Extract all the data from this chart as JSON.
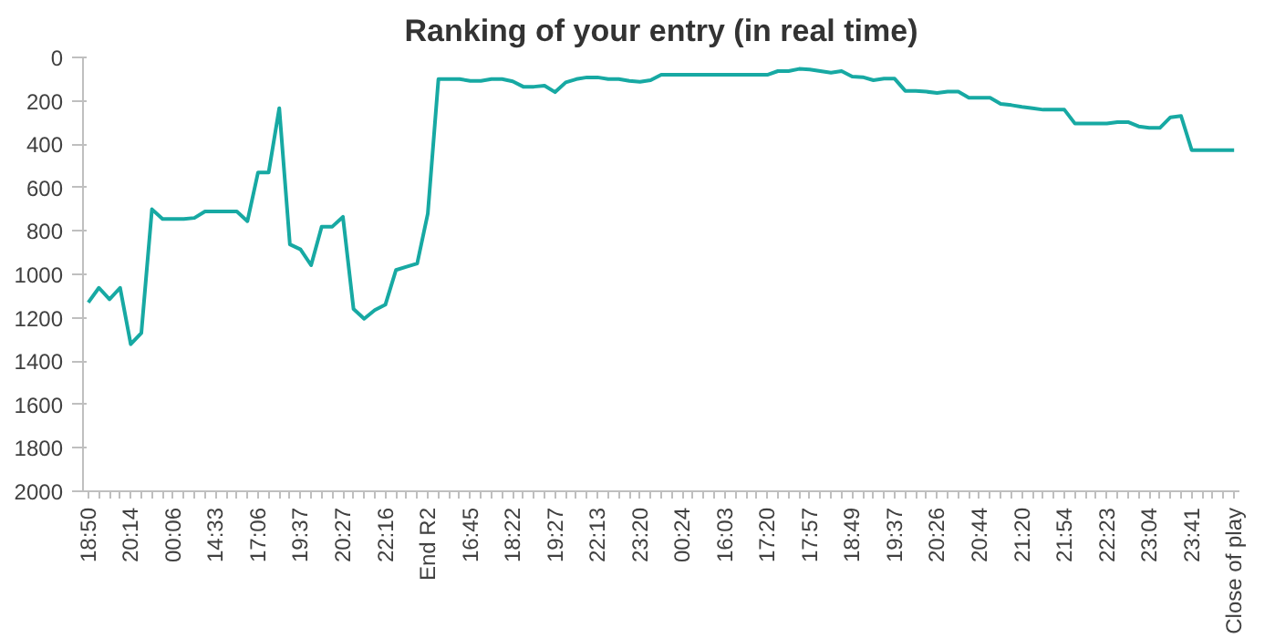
{
  "chart_data": {
    "type": "line",
    "title": "Ranking of your entry (in real time)",
    "categories": [
      "18:50",
      null,
      null,
      null,
      "20:14",
      null,
      null,
      null,
      "00:06",
      null,
      null,
      null,
      "14:33",
      null,
      null,
      null,
      "17:06",
      null,
      null,
      null,
      "19:37",
      null,
      null,
      null,
      "20:27",
      null,
      null,
      null,
      "22:16",
      null,
      null,
      null,
      "End R2",
      null,
      null,
      null,
      "16:45",
      null,
      null,
      null,
      "18:22",
      null,
      null,
      null,
      "19:27",
      null,
      null,
      null,
      "22:13",
      null,
      null,
      null,
      "23:20",
      null,
      null,
      null,
      "00:24",
      null,
      null,
      null,
      "16:03",
      null,
      null,
      null,
      "17:20",
      null,
      null,
      null,
      "17:57",
      null,
      null,
      null,
      "18:49",
      null,
      null,
      null,
      "19:37",
      null,
      null,
      null,
      "20:26",
      null,
      null,
      null,
      "20:44",
      null,
      null,
      null,
      "21:20",
      null,
      null,
      null,
      "21:54",
      null,
      null,
      null,
      "22:23",
      null,
      null,
      null,
      "23:04",
      null,
      null,
      null,
      "23:41",
      null,
      null,
      null,
      "Close of play"
    ],
    "series": [
      {
        "color": "#17a9a3",
        "values": [
          1130,
          1062,
          1115,
          1062,
          1322,
          1270,
          700,
          745,
          745,
          745,
          740,
          710,
          710,
          710,
          710,
          755,
          530,
          530,
          234,
          862,
          885,
          958,
          780,
          780,
          735,
          1160,
          1205,
          1165,
          1140,
          980,
          965,
          950,
          720,
          100,
          100,
          100,
          108,
          108,
          100,
          100,
          110,
          135,
          135,
          130,
          160,
          115,
          100,
          92,
          92,
          100,
          100,
          108,
          112,
          105,
          80,
          80,
          80,
          80,
          80,
          80,
          80,
          80,
          80,
          80,
          80,
          63,
          63,
          53,
          56,
          63,
          70,
          63,
          88,
          91,
          105,
          98,
          98,
          154,
          154,
          158,
          164,
          158,
          158,
          186,
          186,
          186,
          214,
          220,
          228,
          234,
          241,
          241,
          241,
          305,
          305,
          305,
          305,
          298,
          298,
          318,
          325,
          325,
          276,
          270,
          427,
          427,
          427,
          427,
          427
        ]
      }
    ],
    "ylim": [
      2000,
      0
    ],
    "yticks": [
      0,
      200,
      400,
      600,
      800,
      1000,
      1200,
      1400,
      1600,
      1800,
      2000
    ],
    "grid": false,
    "marker": "none",
    "line_style": "solid"
  }
}
